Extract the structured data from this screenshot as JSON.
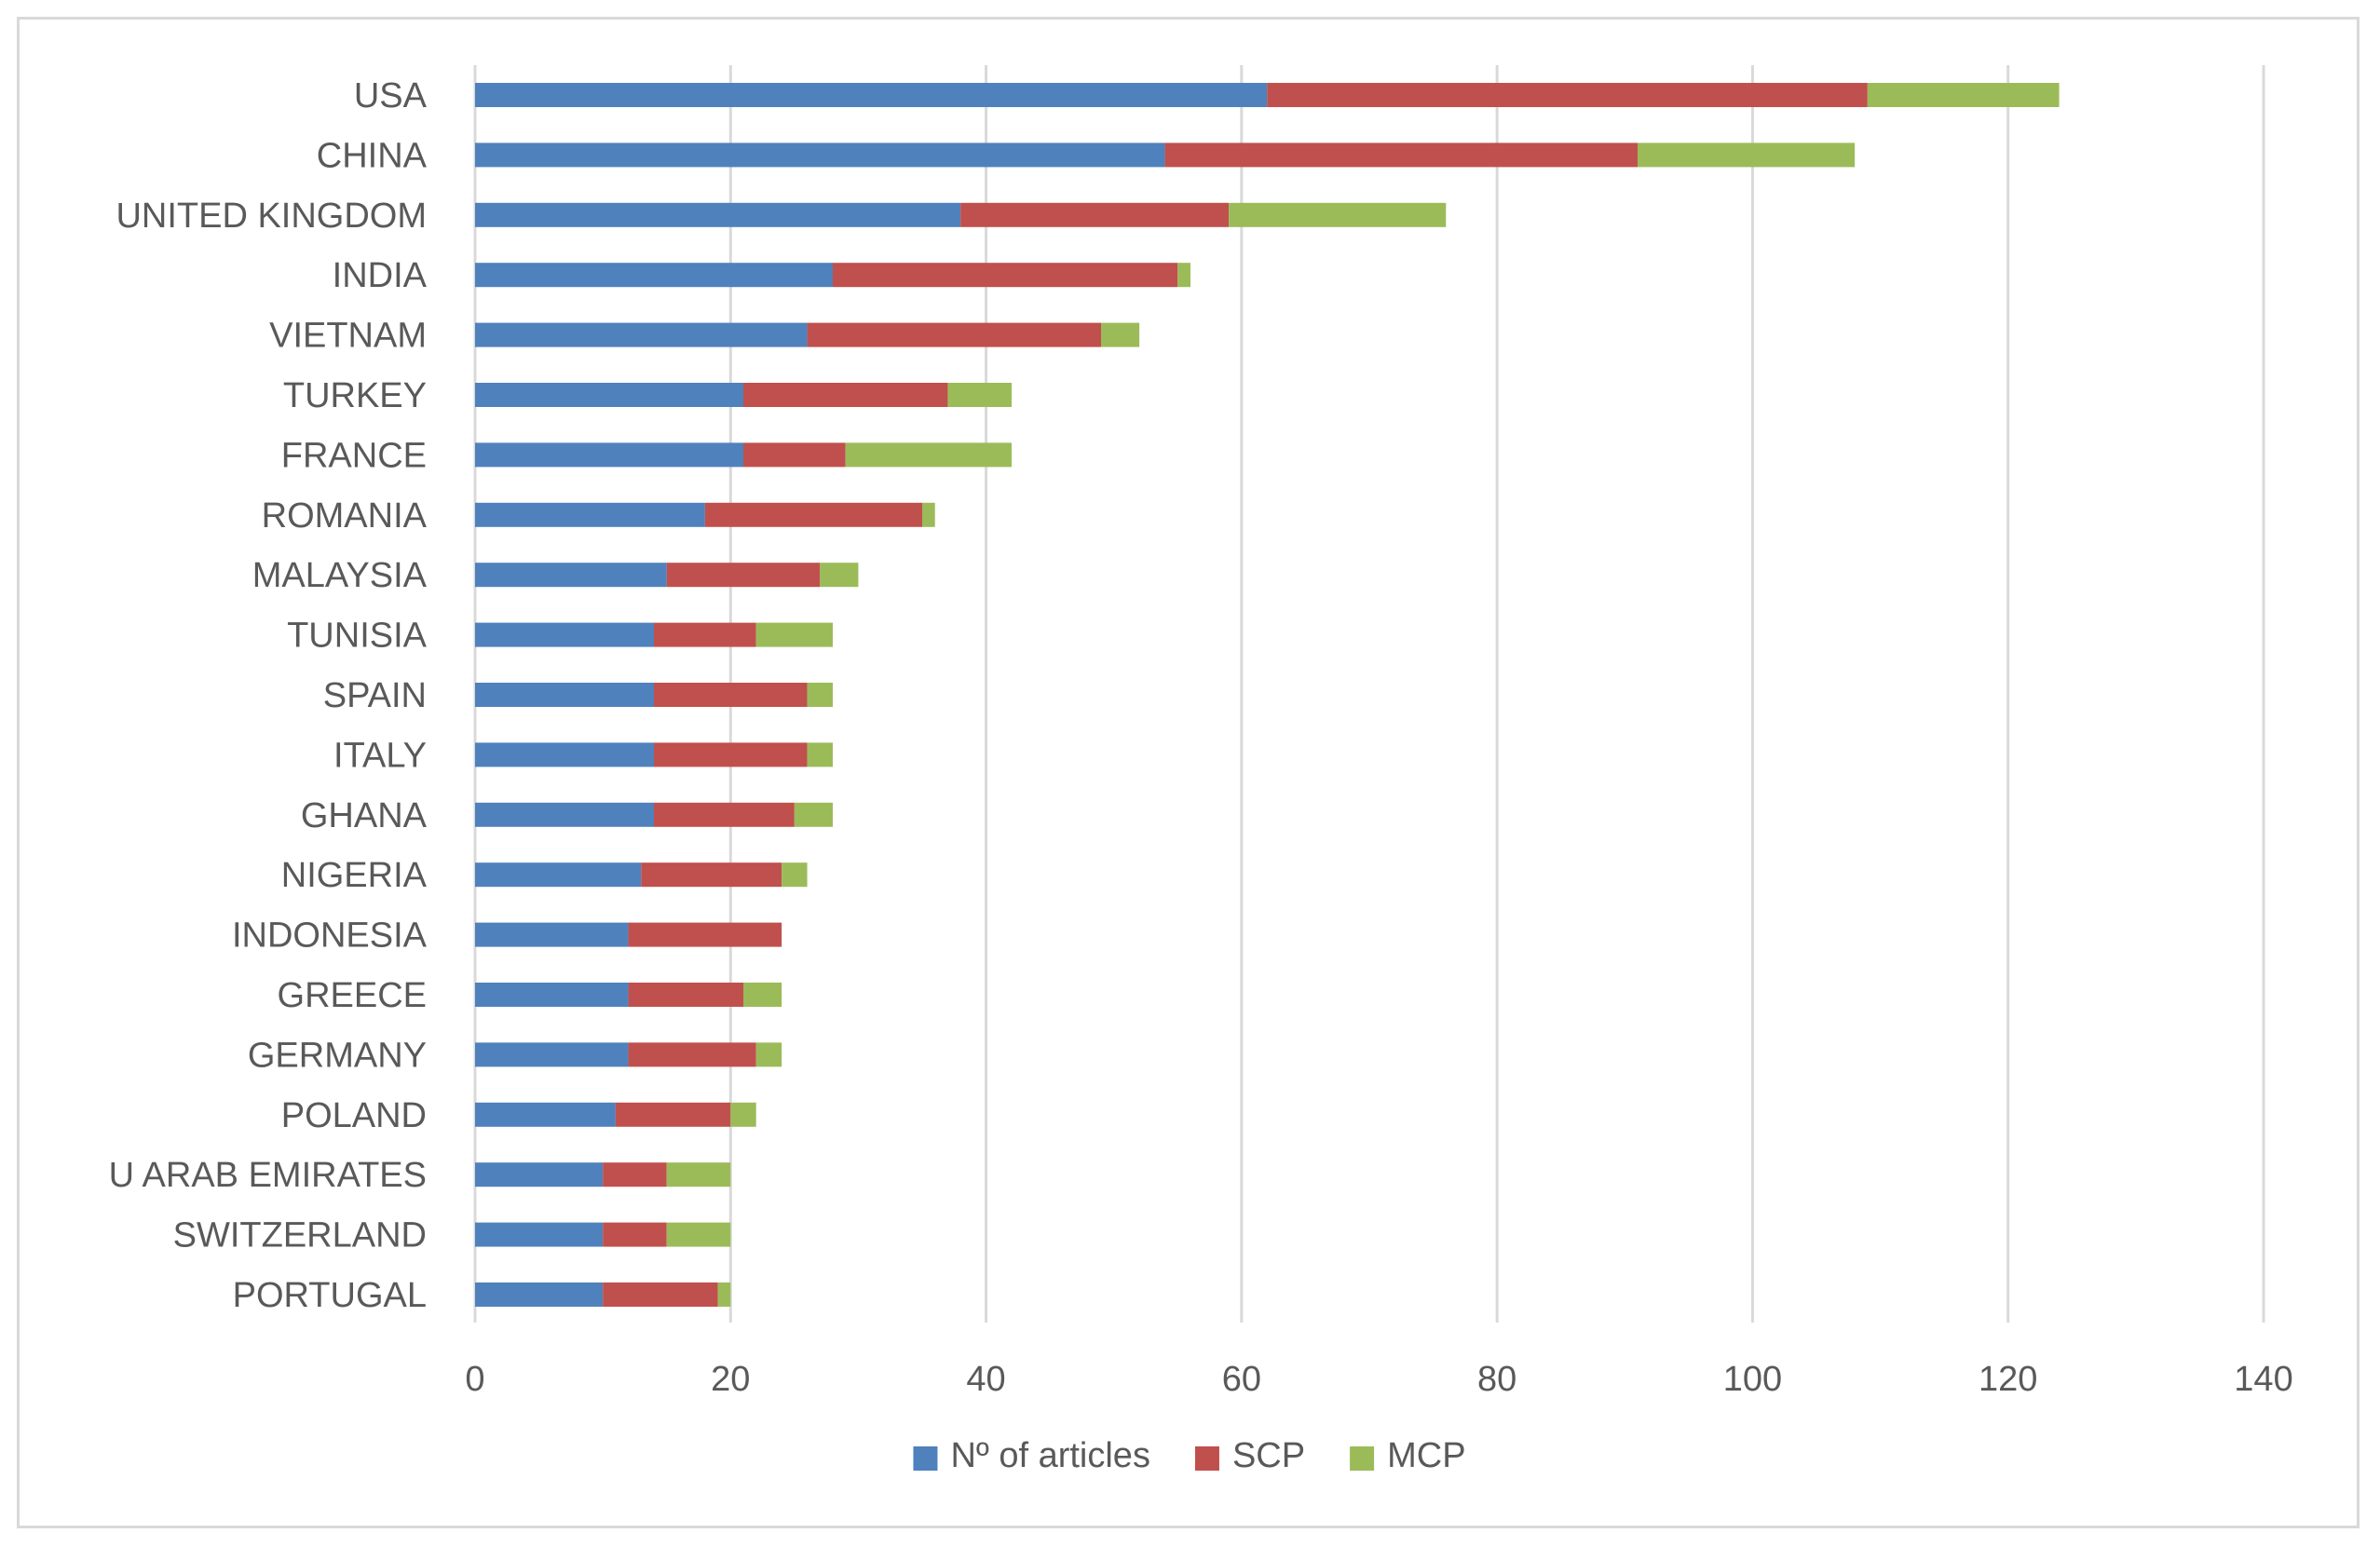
{
  "chart_data": {
    "type": "bar",
    "orientation": "horizontal",
    "stacked": true,
    "title": "",
    "xlabel": "",
    "ylabel": "",
    "xlim": [
      0,
      140
    ],
    "x_ticks": [
      0,
      20,
      40,
      60,
      80,
      100,
      120,
      140
    ],
    "grid": "vertical",
    "legend_position": "bottom",
    "categories": [
      "USA",
      "CHINA",
      "UNITED KINGDOM",
      "INDIA",
      "VIETNAM",
      "TURKEY",
      "FRANCE",
      "ROMANIA",
      "MALAYSIA",
      "TUNISIA",
      "SPAIN",
      "ITALY",
      "GHANA",
      "NIGERIA",
      "INDONESIA",
      "GREECE",
      "GERMANY",
      "POLAND",
      "U ARAB EMIRATES",
      "SWITZERLAND",
      "PORTUGAL"
    ],
    "series": [
      {
        "name": "Nº of articles",
        "color": "#4f81bd",
        "values": [
          62,
          54,
          38,
          28,
          26,
          21,
          21,
          18,
          15,
          14,
          14,
          14,
          14,
          13,
          12,
          12,
          12,
          11,
          10,
          10,
          10
        ]
      },
      {
        "name": "SCP",
        "color": "#c0504d",
        "values": [
          47,
          37,
          21,
          27,
          23,
          16,
          8,
          17,
          12,
          8,
          12,
          12,
          11,
          11,
          12,
          9,
          10,
          9,
          5,
          5,
          9
        ]
      },
      {
        "name": "MCP",
        "color": "#9bbb59",
        "values": [
          15,
          17,
          17,
          1,
          3,
          5,
          13,
          1,
          3,
          6,
          2,
          2,
          3,
          2,
          0,
          3,
          2,
          2,
          5,
          5,
          1
        ]
      }
    ]
  }
}
